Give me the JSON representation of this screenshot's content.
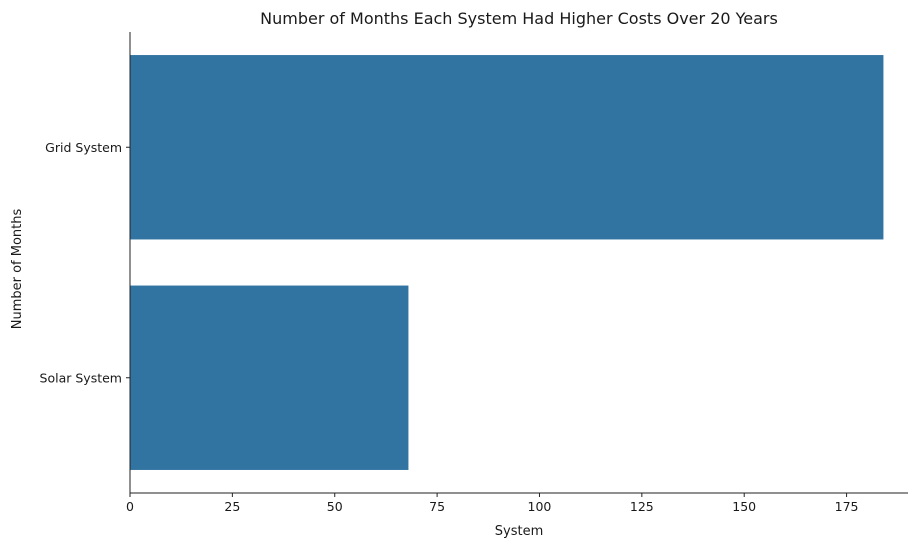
{
  "chart_data": {
    "type": "bar",
    "orientation": "horizontal",
    "title": "Number of Months Each System Had Higher Costs Over 20 Years",
    "xlabel": "System",
    "ylabel": "Number of Months",
    "categories": [
      "Grid System",
      "Solar System"
    ],
    "values": [
      184,
      68
    ],
    "xlim": [
      0,
      190
    ],
    "xticks": [
      "0",
      "25",
      "50",
      "75",
      "100",
      "125",
      "150",
      "175"
    ],
    "grid": false,
    "bar_color": "#3274a1"
  }
}
